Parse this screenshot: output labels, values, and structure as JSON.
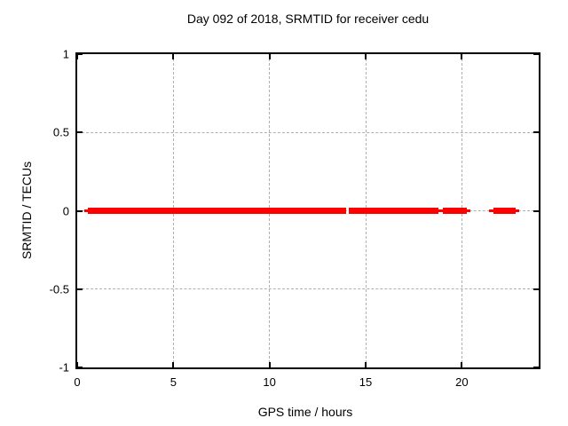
{
  "chart_data": {
    "type": "line",
    "title": "Day 092 of 2018, SRMTID for receiver cedu",
    "xlabel": "GPS time / hours",
    "ylabel": "SRMTID / TECUs",
    "xlim": [
      0,
      24
    ],
    "ylim": [
      -1,
      1
    ],
    "xticks": [
      0,
      5,
      10,
      15,
      20
    ],
    "xtick_labels": [
      "0",
      "5",
      "10",
      "15",
      "20"
    ],
    "yticks": [
      -1,
      -0.5,
      0,
      0.5,
      1
    ],
    "ytick_labels": [
      "-1",
      "-0.5",
      "0",
      "0.5",
      "1"
    ],
    "grid": true,
    "legend_position": "none",
    "colors": {
      "series": "#ff0000",
      "grid": "#b0b0b0",
      "border": "#000000",
      "text": "#000000",
      "background": "#ffffff"
    },
    "series": [
      {
        "name": "SRMTID",
        "color": "#ff0000",
        "y_value": 0,
        "segments": [
          {
            "from": 0.37,
            "to": 0.55,
            "weight": "thin"
          },
          {
            "from": 0.55,
            "to": 14.0,
            "weight": "thick"
          },
          {
            "from": 14.1,
            "to": 18.78,
            "weight": "thick"
          },
          {
            "from": 18.78,
            "to": 19.0,
            "weight": "thin"
          },
          {
            "from": 19.0,
            "to": 20.25,
            "weight": "thick"
          },
          {
            "from": 20.25,
            "to": 20.45,
            "weight": "thin"
          },
          {
            "from": 21.43,
            "to": 21.66,
            "weight": "thin"
          },
          {
            "from": 21.66,
            "to": 22.82,
            "weight": "thick"
          },
          {
            "from": 22.82,
            "to": 23.0,
            "weight": "thin"
          }
        ]
      }
    ]
  }
}
